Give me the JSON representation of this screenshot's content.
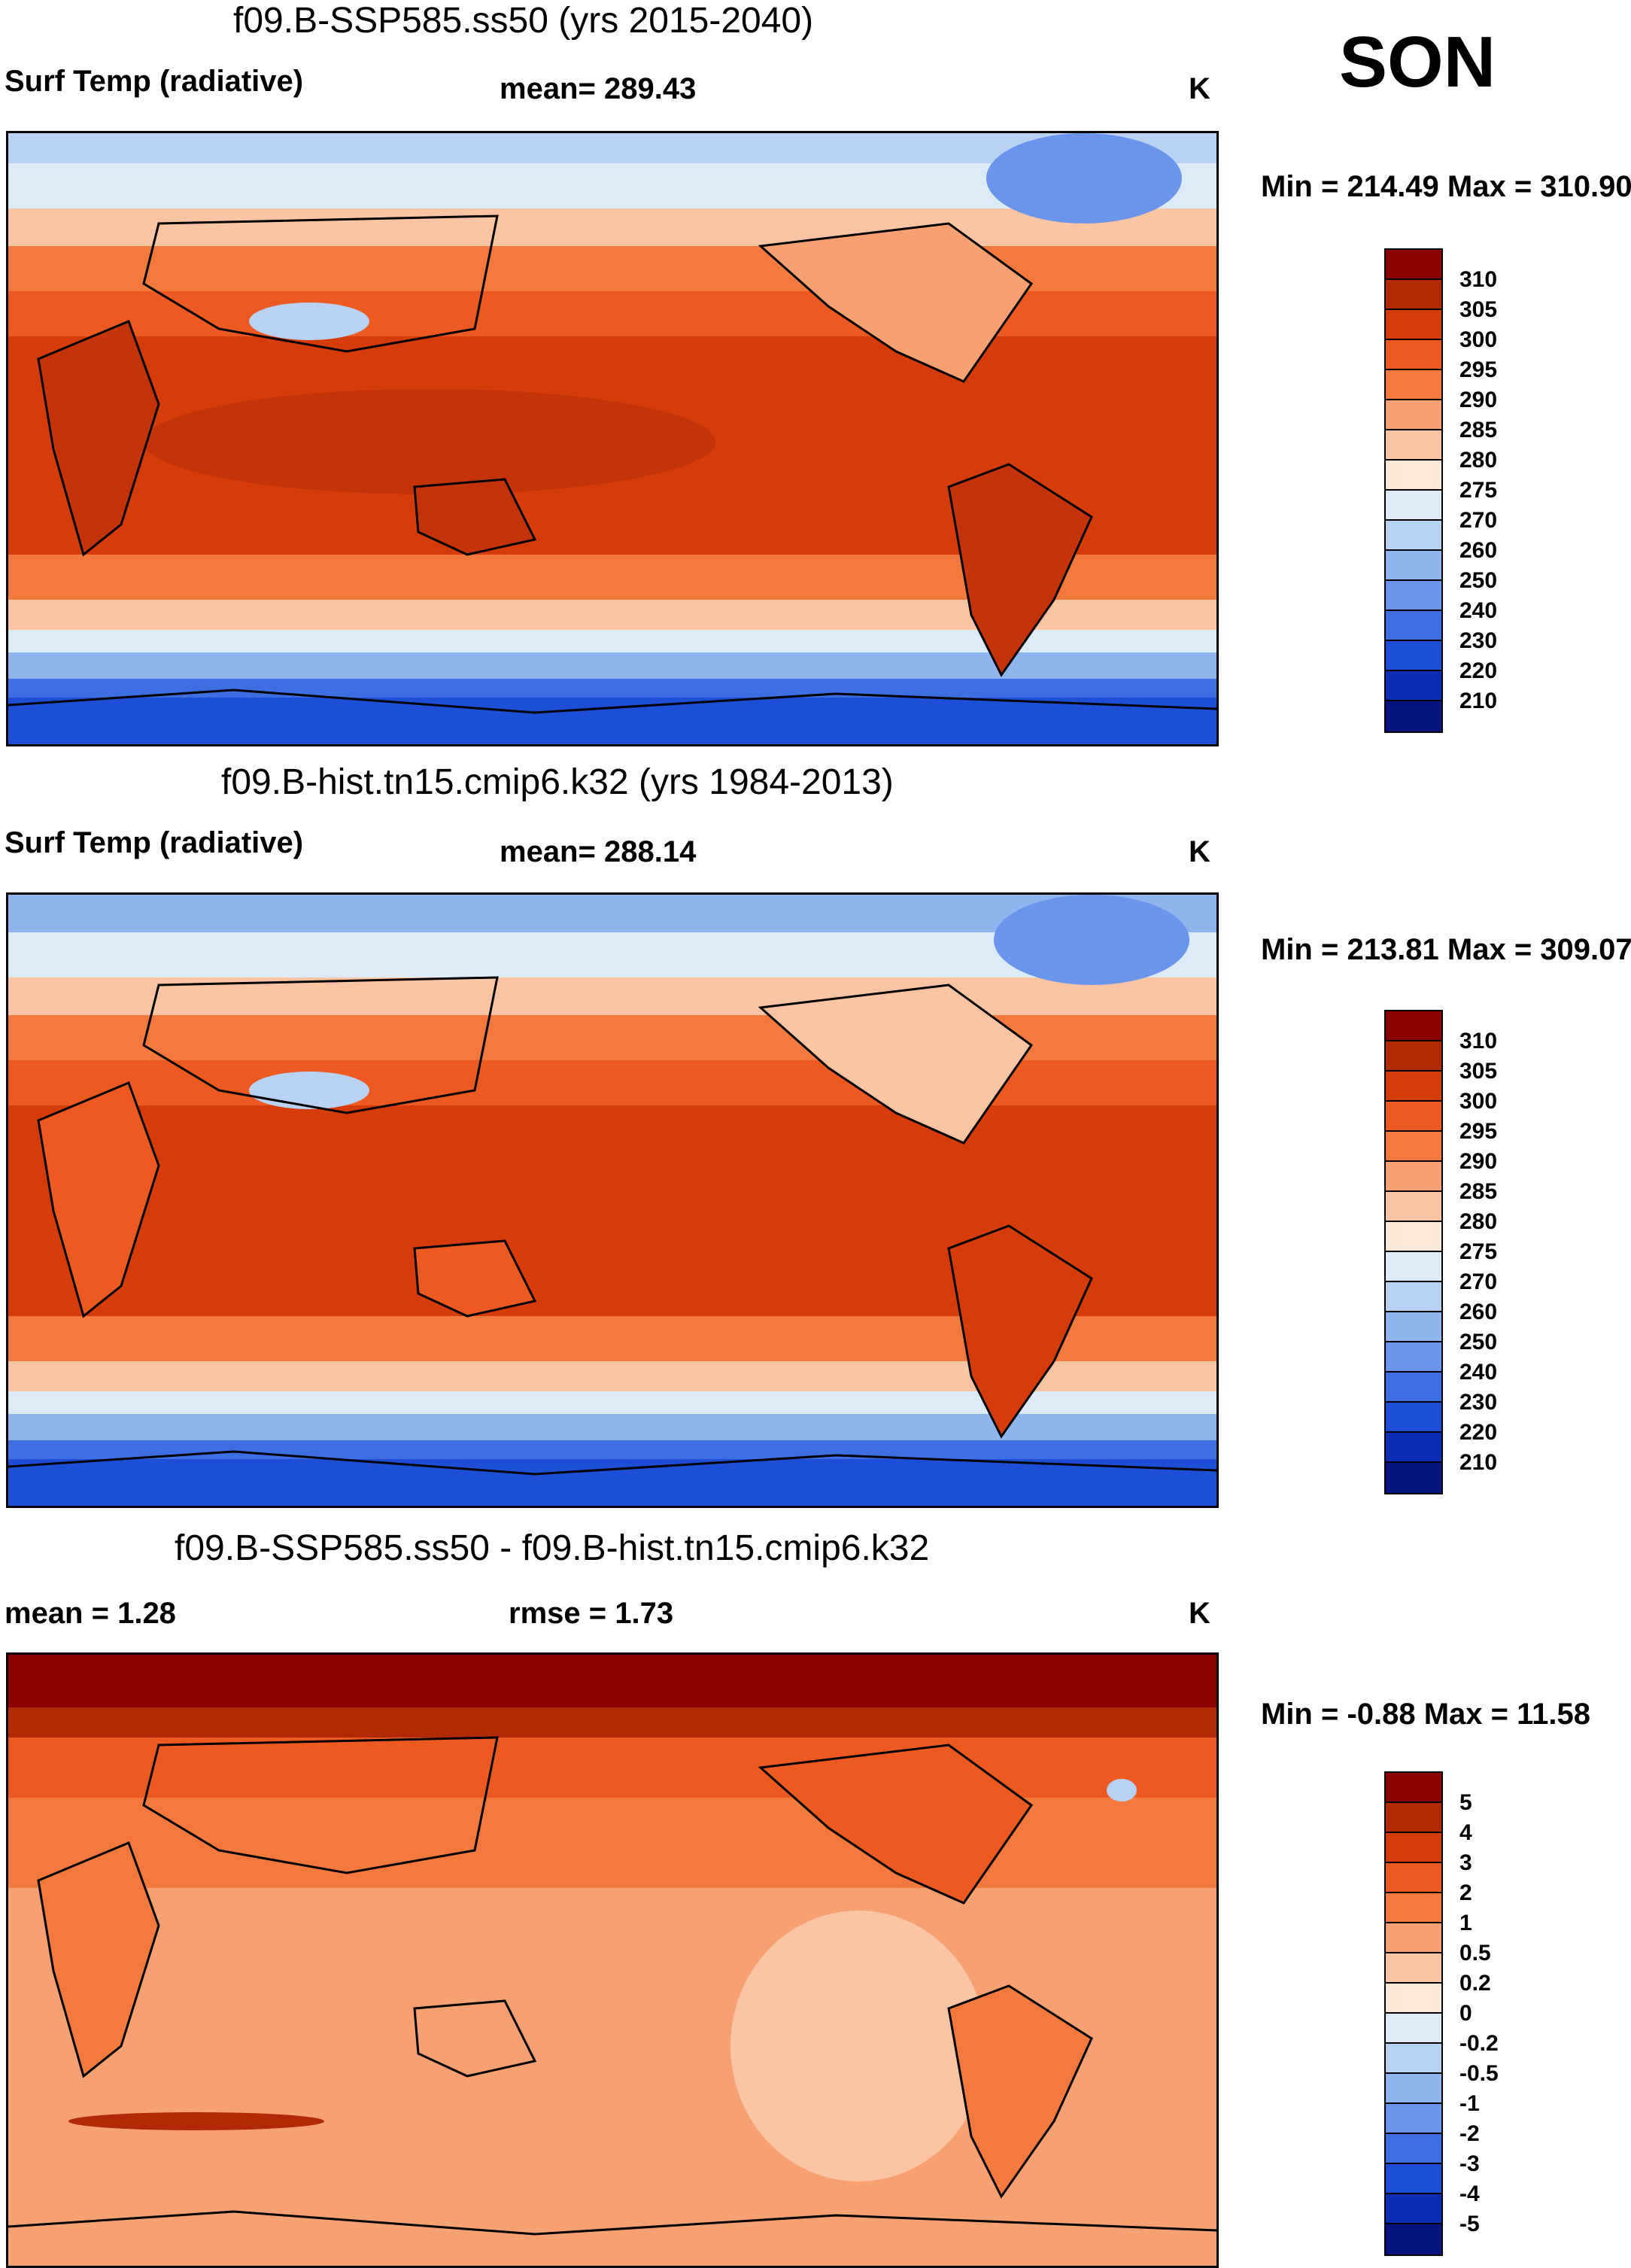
{
  "season": "SON",
  "units": "K",
  "panels": [
    {
      "title": "f09.B-SSP585.ss50 (yrs 2015-2040)",
      "left_label": "Surf Temp (radiative)",
      "center_label": "mean= 289.43",
      "right_label": "K",
      "minmax": "Min = 214.49 Max = 310.90",
      "levels": [
        "310",
        "305",
        "300",
        "295",
        "290",
        "285",
        "280",
        "275",
        "270",
        "260",
        "250",
        "240",
        "230",
        "220",
        "210"
      ],
      "colors": [
        "#8b0000",
        "#b22a05",
        "#d63b0a",
        "#ed5a21",
        "#f4793f",
        "#f7a072",
        "#fbc5a3",
        "#fde8d8",
        "#ddeaf8",
        "#b9d2f3",
        "#8fb4ee",
        "#6a95ea",
        "#3d6fe2",
        "#1d4fd6",
        "#0a2db3",
        "#07147f"
      ]
    },
    {
      "title": "f09.B-hist.tn15.cmip6.k32 (yrs 1984-2013)",
      "left_label": "Surf Temp (radiative)",
      "center_label": "mean= 288.14",
      "right_label": "K",
      "minmax": "Min = 213.81 Max = 309.07",
      "levels": [
        "310",
        "305",
        "300",
        "295",
        "290",
        "285",
        "280",
        "275",
        "270",
        "260",
        "250",
        "240",
        "230",
        "220",
        "210"
      ],
      "colors": [
        "#8b0000",
        "#b22a05",
        "#d63b0a",
        "#ed5a21",
        "#f4793f",
        "#f7a072",
        "#fbc5a3",
        "#fde8d8",
        "#ddeaf8",
        "#b9d2f3",
        "#8fb4ee",
        "#6a95ea",
        "#3d6fe2",
        "#1d4fd6",
        "#0a2db3",
        "#07147f"
      ]
    },
    {
      "title": "f09.B-SSP585.ss50 - f09.B-hist.tn15.cmip6.k32",
      "left_label": "mean =    1.28",
      "center_label": "rmse =    1.73",
      "right_label": "K",
      "minmax": "Min =  -0.88 Max =  11.58",
      "levels": [
        "5",
        "4",
        "3",
        "2",
        "1",
        "0.5",
        "0.2",
        "0",
        "-0.2",
        "-0.5",
        "-1",
        "-2",
        "-3",
        "-4",
        "-5"
      ],
      "colors": [
        "#8b0000",
        "#b22a05",
        "#d63b0a",
        "#ed5a21",
        "#f4793f",
        "#f7a072",
        "#fbc5a3",
        "#fde8d8",
        "#ddeaf8",
        "#b9d2f3",
        "#8fb4ee",
        "#6a95ea",
        "#3d6fe2",
        "#1d4fd6",
        "#0a2db3",
        "#07147f"
      ]
    }
  ]
}
